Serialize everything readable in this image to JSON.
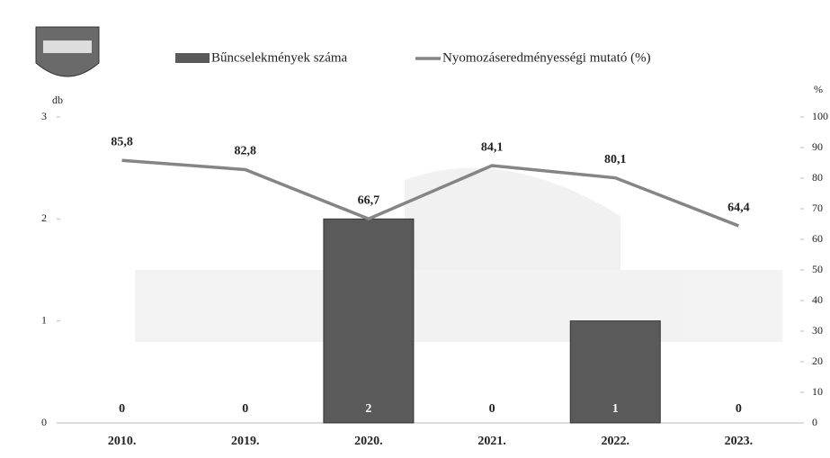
{
  "chart_data": {
    "type": "combo",
    "categories": [
      "2010.",
      "2019.",
      "2020.",
      "2021.",
      "2022.",
      "2023."
    ],
    "y_label": "db",
    "y2_label": "%",
    "ylim": [
      0,
      3
    ],
    "yticks": [
      0,
      1,
      2,
      3
    ],
    "y2lim": [
      0,
      100
    ],
    "y2ticks": [
      0,
      10,
      20,
      30,
      40,
      50,
      60,
      70,
      80,
      90,
      100
    ],
    "legend": "top",
    "series": [
      {
        "name": "Bűncselekmények száma",
        "type": "bar",
        "color": "#5a5a5a",
        "values": [
          0,
          0,
          2,
          0,
          1,
          0
        ]
      },
      {
        "name": "Nyomozáseredményességi mutató (%)",
        "type": "line",
        "axis": "y2",
        "color": "#858585",
        "values": [
          85.8,
          82.8,
          66.7,
          84.1,
          80.1,
          64.4
        ],
        "value_labels": [
          "85,8",
          "82,8",
          "66,7",
          "84,1",
          "80,1",
          "64,4"
        ]
      }
    ]
  }
}
